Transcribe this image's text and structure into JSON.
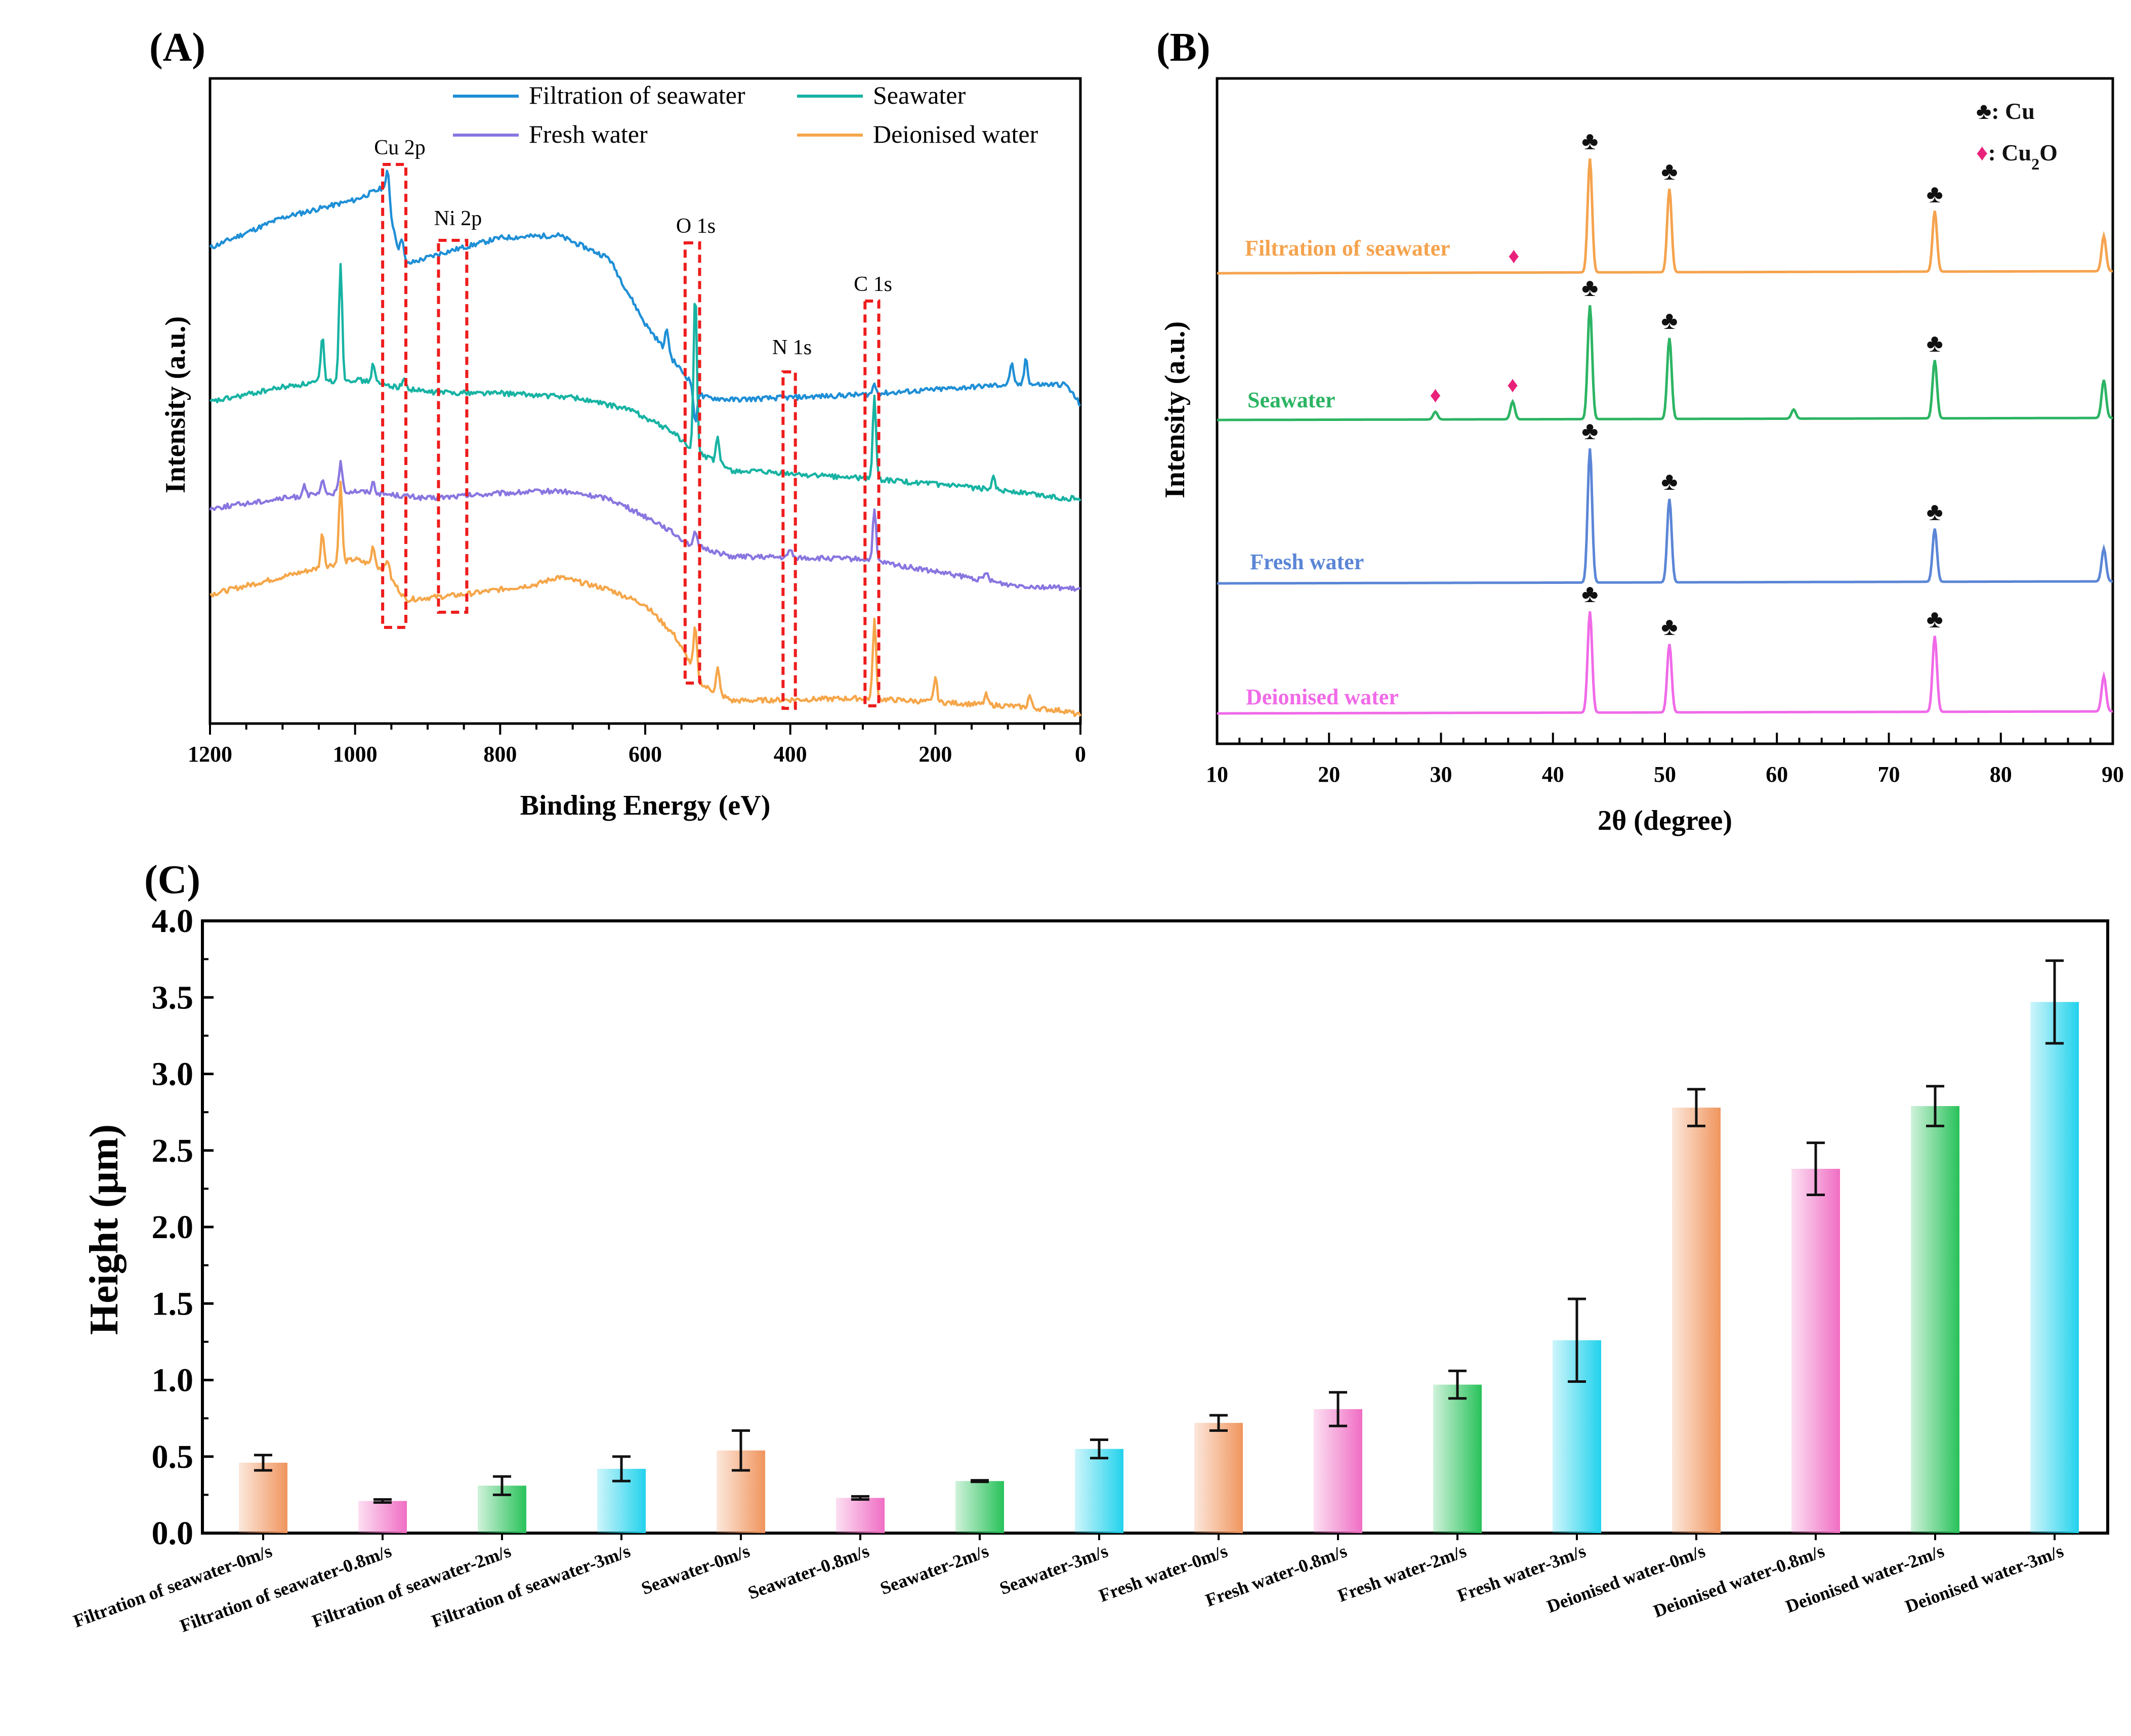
{
  "chart_data": [
    {
      "id": "A",
      "type": "line",
      "panel_label": "(A)",
      "xlabel": "Binding Energy (eV)",
      "ylabel": "Intensity (a.u.)",
      "xlim": [
        1200,
        0
      ],
      "x_ticks": [
        "1200",
        "1000",
        "800",
        "600",
        "400",
        "200",
        "0"
      ],
      "series": [
        {
          "name": "Filtration of seawater",
          "color": "#1f8fd6"
        },
        {
          "name": "Seawater",
          "color": "#17b3a3"
        },
        {
          "name": "Fresh water",
          "color": "#8a76e0"
        },
        {
          "name": "Deionised water",
          "color": "#f5a64a"
        }
      ],
      "annotations": [
        {
          "label": "Cu 2p",
          "x_range": [
            962,
            930
          ]
        },
        {
          "label": "Ni 2p",
          "x_range": [
            885,
            846
          ]
        },
        {
          "label": "O 1s",
          "x_range": [
            545,
            525
          ]
        },
        {
          "label": "N 1s",
          "x_range": [
            410,
            393
          ]
        },
        {
          "label": "C 1s",
          "x_range": [
            297,
            278
          ]
        }
      ]
    },
    {
      "id": "B",
      "type": "line",
      "panel_label": "(B)",
      "xlabel": "2θ (degree)",
      "ylabel": "Intensity (a.u.)",
      "xlim": [
        10,
        90
      ],
      "x_ticks": [
        "10",
        "20",
        "30",
        "40",
        "50",
        "60",
        "70",
        "80",
        "90"
      ],
      "legend": [
        {
          "symbol": "♣",
          "text": ": Cu"
        },
        {
          "symbol": "♦",
          "text": ": Cu",
          "sub": "2",
          "tail": "O"
        }
      ],
      "series": [
        {
          "name": "Filtration of seawater",
          "color": "#f5a34e",
          "cu_peaks": [
            43.3,
            50.4,
            74.1
          ],
          "cu2o_peaks": [
            36.5
          ]
        },
        {
          "name": "Seawater",
          "color": "#2cb463",
          "cu_peaks": [
            43.3,
            50.4,
            74.1
          ],
          "cu2o_peaks": [
            29.5,
            36.4
          ]
        },
        {
          "name": "Fresh water",
          "color": "#5b86d6",
          "cu_peaks": [
            43.3,
            50.4,
            74.1
          ],
          "cu2o_peaks": []
        },
        {
          "name": "Deionised water",
          "color": "#f06ae8",
          "cu_peaks": [
            43.3,
            50.4,
            74.1
          ],
          "cu2o_peaks": []
        }
      ]
    },
    {
      "id": "C",
      "type": "bar",
      "panel_label": "(C)",
      "ylabel": "Height (μm)",
      "ylim": [
        0,
        4.0
      ],
      "y_ticks": [
        "0.0",
        "0.5",
        "1.0",
        "1.5",
        "2.0",
        "2.5",
        "3.0",
        "3.5",
        "4.0"
      ],
      "categories": [
        "Filtration of seawater-0m/s",
        "Filtration of seawater-0.8m/s",
        "Filtration of seawater-2m/s",
        "Filtration of seawater-3m/s",
        "Seawater-0m/s",
        "Seawater-0.8m/s",
        "Seawater-2m/s",
        "Seawater-3m/s",
        "Fresh water-0m/s",
        "Fresh water-0.8m/s",
        "Fresh water-2m/s",
        "Fresh water-3m/s",
        "Deionised water-0m/s",
        "Deionised water-0.8m/s",
        "Deionised water-2m/s",
        "Deionised water-3m/s"
      ],
      "values": [
        0.46,
        0.21,
        0.31,
        0.42,
        0.54,
        0.23,
        0.34,
        0.55,
        0.72,
        0.81,
        0.97,
        1.26,
        2.78,
        2.38,
        2.79,
        3.47
      ],
      "errors": [
        0.05,
        0.01,
        0.06,
        0.08,
        0.13,
        0.01,
        0.005,
        0.06,
        0.05,
        0.11,
        0.09,
        0.27,
        0.12,
        0.17,
        0.13,
        0.27
      ],
      "bar_colors": [
        "#f0955e",
        "#f06ec4",
        "#28c25a",
        "#22d2ec",
        "#f0955e",
        "#f06ec4",
        "#28c25a",
        "#22d2ec",
        "#f0955e",
        "#f06ec4",
        "#28c25a",
        "#22d2ec",
        "#f0955e",
        "#f06ec4",
        "#28c25a",
        "#22d2ec"
      ]
    }
  ]
}
